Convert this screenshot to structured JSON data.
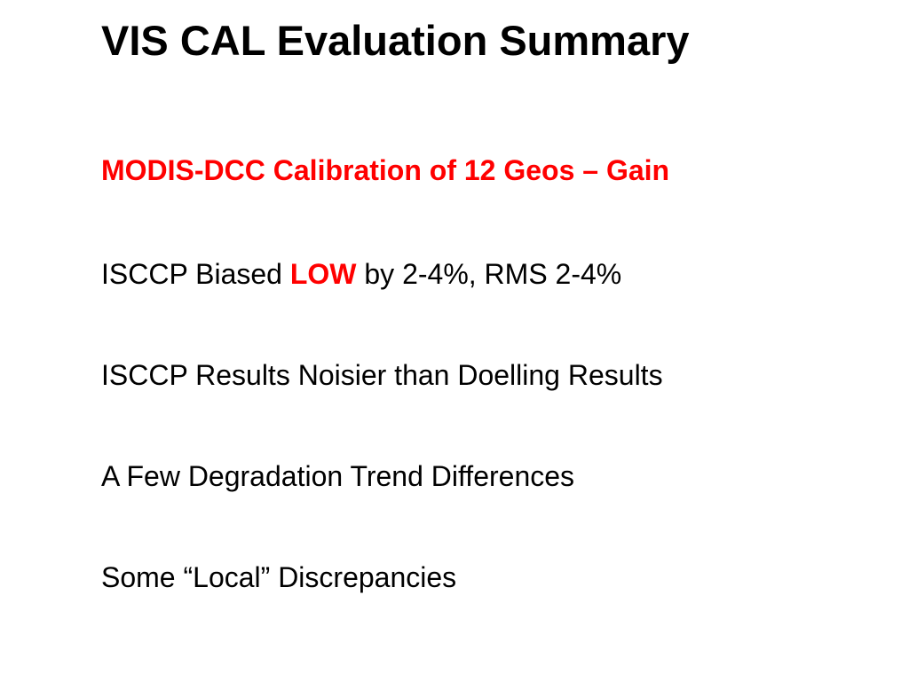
{
  "slide": {
    "title": "VIS CAL Evaluation Summary",
    "subtitle": "MODIS-DCC Calibration of 12 Geos – Gain",
    "lines": [
      {
        "before": "ISCCP Biased ",
        "highlight": "LOW",
        "after": " by 2-4%, RMS 2-4%"
      },
      {
        "text": "ISCCP Results Noisier than Doelling Results"
      },
      {
        "text": "A Few Degradation Trend Differences"
      },
      {
        "text": "Some “Local” Discrepancies"
      }
    ]
  },
  "colors": {
    "accent": "#ff0000",
    "text": "#000000",
    "background": "#ffffff"
  }
}
